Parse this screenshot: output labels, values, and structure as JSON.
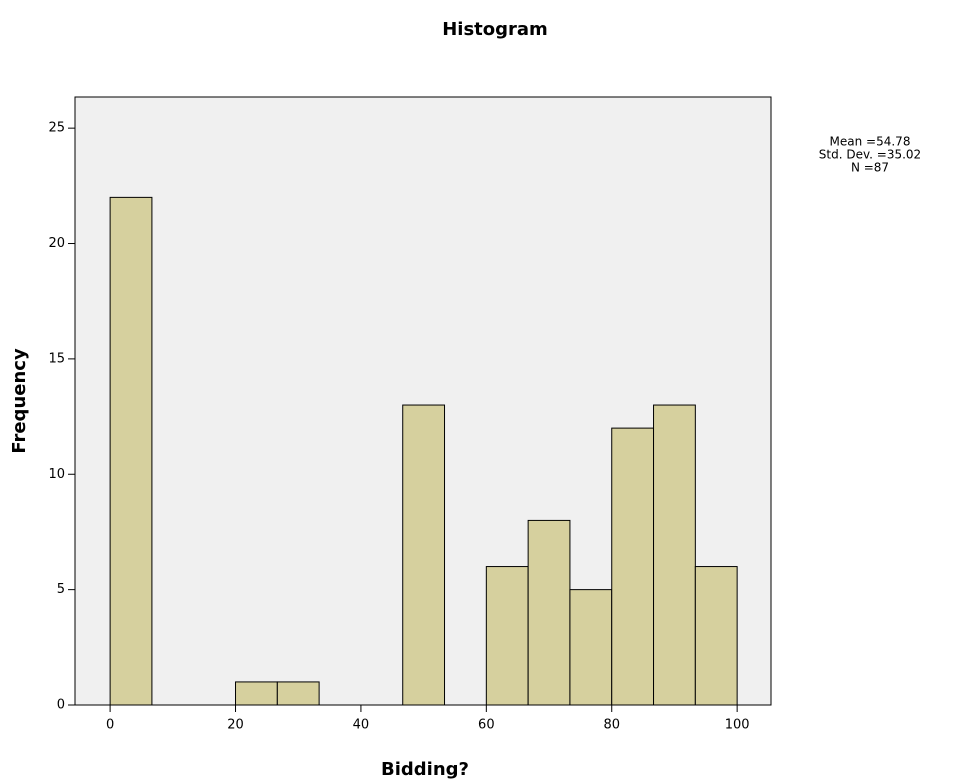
{
  "chart_data": {
    "type": "histogram",
    "title": "Histogram",
    "x_label": "Bidding?",
    "y_label": "Frequency",
    "bins": [
      0,
      6.667,
      13.333,
      20,
      26.667,
      33.333,
      40,
      46.667,
      53.333,
      60,
      66.667,
      73.333,
      80,
      86.667,
      93.333,
      100
    ],
    "values": [
      22,
      0,
      0,
      1,
      1,
      0,
      0,
      13,
      0,
      6,
      8,
      5,
      12,
      13,
      6
    ],
    "color": "#d6d09e",
    "xlim": [
      -5.6,
      105.4
    ],
    "xticks": [
      0,
      20,
      40,
      60,
      80,
      100
    ],
    "ylim": [
      0,
      26.35
    ],
    "yticks": [
      0,
      5,
      10,
      15,
      20,
      25
    ],
    "annotations": [
      "Mean =54.78",
      "Std. Dev. =35.02",
      "N =87"
    ]
  }
}
